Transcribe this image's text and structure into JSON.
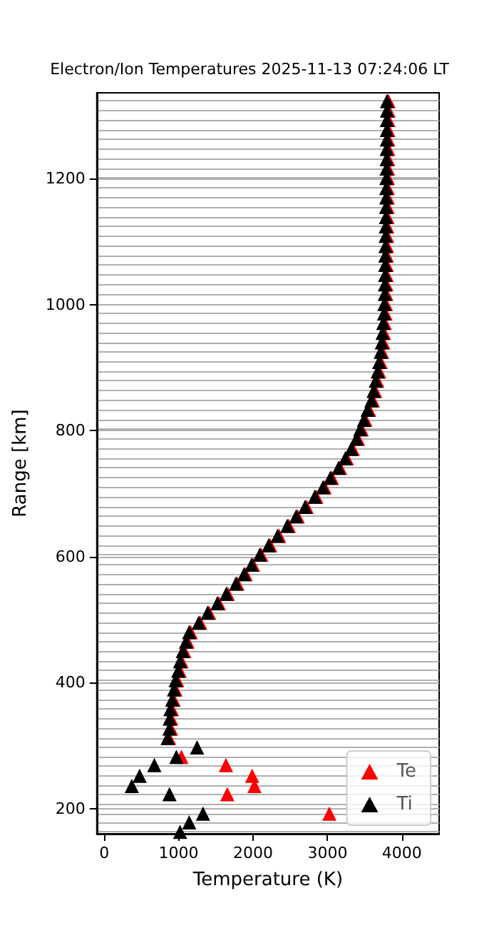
{
  "chart_data": {
    "type": "scatter",
    "title": "Electron/Ion Temperatures 2025-11-13 07:24:06 LT",
    "xlabel": "Temperature (K)",
    "ylabel": "Range [km]",
    "xlim": [
      -100,
      4500
    ],
    "xticks": [
      0,
      1000,
      2000,
      3000,
      4000
    ],
    "ylim": [
      160,
      1336
    ],
    "yticks": [
      {
        "value": 163,
        "label": null
      },
      {
        "value": 178,
        "label": null
      },
      {
        "value": 192,
        "label": null
      },
      200,
      {
        "value": 207,
        "label": null
      },
      {
        "value": 223,
        "label": null
      },
      {
        "value": 236,
        "label": null
      },
      {
        "value": 252,
        "label": null
      },
      {
        "value": 269,
        "label": null
      },
      {
        "value": 282,
        "label": null
      },
      {
        "value": 297,
        "label": null
      },
      {
        "value": 312,
        "label": null
      },
      {
        "value": 327,
        "label": null
      },
      {
        "value": 343,
        "label": null
      },
      {
        "value": 358,
        "label": null
      },
      {
        "value": 373,
        "label": null
      },
      {
        "value": 389,
        "label": null
      },
      400,
      {
        "value": 404,
        "label": null
      },
      {
        "value": 419,
        "label": null
      },
      {
        "value": 434,
        "label": null
      },
      {
        "value": 450,
        "label": null
      },
      {
        "value": 465,
        "label": null
      },
      {
        "value": 480,
        "label": null
      },
      {
        "value": 495,
        "label": null
      },
      {
        "value": 511,
        "label": null
      },
      {
        "value": 526,
        "label": null
      },
      {
        "value": 541,
        "label": null
      },
      {
        "value": 557,
        "label": null
      },
      {
        "value": 572,
        "label": null
      },
      {
        "value": 587,
        "label": null
      },
      600,
      {
        "value": 603,
        "label": null
      },
      {
        "value": 618,
        "label": null
      },
      {
        "value": 633,
        "label": null
      },
      {
        "value": 649,
        "label": null
      },
      {
        "value": 664,
        "label": null
      },
      {
        "value": 679,
        "label": null
      },
      {
        "value": 695,
        "label": null
      },
      {
        "value": 710,
        "label": null
      },
      {
        "value": 725,
        "label": null
      },
      {
        "value": 741,
        "label": null
      },
      {
        "value": 756,
        "label": null
      },
      {
        "value": 771,
        "label": null
      },
      {
        "value": 787,
        "label": null
      },
      800,
      {
        "value": 802,
        "label": null
      },
      {
        "value": 817,
        "label": null
      },
      {
        "value": 833,
        "label": null
      },
      {
        "value": 848,
        "label": null
      },
      {
        "value": 863,
        "label": null
      },
      {
        "value": 879,
        "label": null
      },
      {
        "value": 894,
        "label": null
      },
      {
        "value": 909,
        "label": null
      },
      {
        "value": 925,
        "label": null
      },
      {
        "value": 940,
        "label": null
      },
      {
        "value": 955,
        "label": null
      },
      {
        "value": 971,
        "label": null
      },
      {
        "value": 986,
        "label": null
      },
      1000,
      {
        "value": 1001,
        "label": null
      },
      {
        "value": 1017,
        "label": null
      },
      {
        "value": 1032,
        "label": null
      },
      {
        "value": 1047,
        "label": null
      },
      {
        "value": 1063,
        "label": null
      },
      {
        "value": 1078,
        "label": null
      },
      {
        "value": 1093,
        "label": null
      },
      {
        "value": 1109,
        "label": null
      },
      {
        "value": 1124,
        "label": null
      },
      {
        "value": 1139,
        "label": null
      },
      {
        "value": 1155,
        "label": null
      },
      {
        "value": 1170,
        "label": null
      },
      {
        "value": 1185,
        "label": null
      },
      1200,
      {
        "value": 1201,
        "label": null
      },
      {
        "value": 1216,
        "label": null
      },
      {
        "value": 1231,
        "label": null
      },
      {
        "value": 1247,
        "label": null
      },
      {
        "value": 1262,
        "label": null
      },
      {
        "value": 1277,
        "label": null
      },
      {
        "value": 1293,
        "label": null
      },
      {
        "value": 1308,
        "label": null
      },
      {
        "value": 1323,
        "label": null
      }
    ],
    "grid": "y",
    "legend": "bottom right",
    "marker": "triangle",
    "series": [
      {
        "name": "Te",
        "color": "#ff0000",
        "x": [
          3025,
          1654,
          2019,
          1988,
          1636,
          1037,
          872,
          897,
          900,
          909,
          933,
          958,
          980,
          1014,
          1039,
          1076,
          1119,
          1162,
          1290,
          1410,
          1540,
          1660,
          1790,
          1900,
          2000,
          2110,
          2230,
          2350,
          2480,
          2600,
          2720,
          2850,
          2960,
          3060,
          3170,
          3260,
          3340,
          3410,
          3460,
          3510,
          3560,
          3610,
          3640,
          3670,
          3695,
          3715,
          3735,
          3750,
          3760,
          3770,
          3780,
          3785,
          3790,
          3792,
          3795,
          3797,
          3798,
          3800,
          3802,
          3804,
          3806,
          3808,
          3810,
          3810,
          3812,
          3814,
          3815,
          3816,
          3817,
          3818,
          3818,
          3820,
          3820
        ],
        "values": [
          192,
          223,
          236,
          252,
          269,
          282,
          312,
          327,
          343,
          358,
          373,
          389,
          404,
          419,
          434,
          450,
          465,
          480,
          495,
          511,
          526,
          541,
          557,
          572,
          587,
          603,
          618,
          633,
          649,
          664,
          679,
          695,
          710,
          725,
          741,
          756,
          771,
          787,
          802,
          817,
          833,
          848,
          863,
          879,
          894,
          909,
          925,
          940,
          955,
          971,
          986,
          1001,
          1017,
          1032,
          1047,
          1063,
          1078,
          1093,
          1109,
          1124,
          1139,
          1155,
          1170,
          1185,
          1201,
          1216,
          1231,
          1247,
          1262,
          1277,
          1293,
          1308,
          1323
        ]
      },
      {
        "name": "Ti",
        "color": "#000000",
        "x": [
          1019,
          1142,
          1327,
          877,
          370,
          475,
          673,
          969,
          1247,
          852,
          877,
          880,
          889,
          913,
          938,
          960,
          994,
          1019,
          1056,
          1099,
          1142,
          1270,
          1390,
          1520,
          1640,
          1770,
          1880,
          1980,
          2090,
          2210,
          2330,
          2460,
          2580,
          2700,
          2830,
          2940,
          3040,
          3150,
          3240,
          3320,
          3390,
          3440,
          3490,
          3540,
          3590,
          3620,
          3650,
          3675,
          3695,
          3715,
          3730,
          3740,
          3750,
          3760,
          3765,
          3770,
          3772,
          3775,
          3777,
          3778,
          3780,
          3782,
          3784,
          3786,
          3788,
          3790,
          3790,
          3792,
          3794,
          3795,
          3796,
          3797,
          3798,
          3798,
          3800,
          3800
        ],
        "values": [
          163,
          178,
          192,
          223,
          236,
          252,
          269,
          282,
          297,
          312,
          327,
          343,
          358,
          373,
          389,
          404,
          419,
          434,
          450,
          465,
          480,
          495,
          511,
          526,
          541,
          557,
          572,
          587,
          603,
          618,
          633,
          649,
          664,
          679,
          695,
          710,
          725,
          741,
          756,
          771,
          787,
          802,
          817,
          833,
          848,
          863,
          879,
          894,
          909,
          925,
          940,
          955,
          971,
          986,
          1001,
          1017,
          1032,
          1047,
          1063,
          1078,
          1093,
          1109,
          1124,
          1139,
          1155,
          1170,
          1185,
          1201,
          1216,
          1231,
          1247,
          1262,
          1277,
          1293,
          1308,
          1323
        ]
      }
    ]
  }
}
